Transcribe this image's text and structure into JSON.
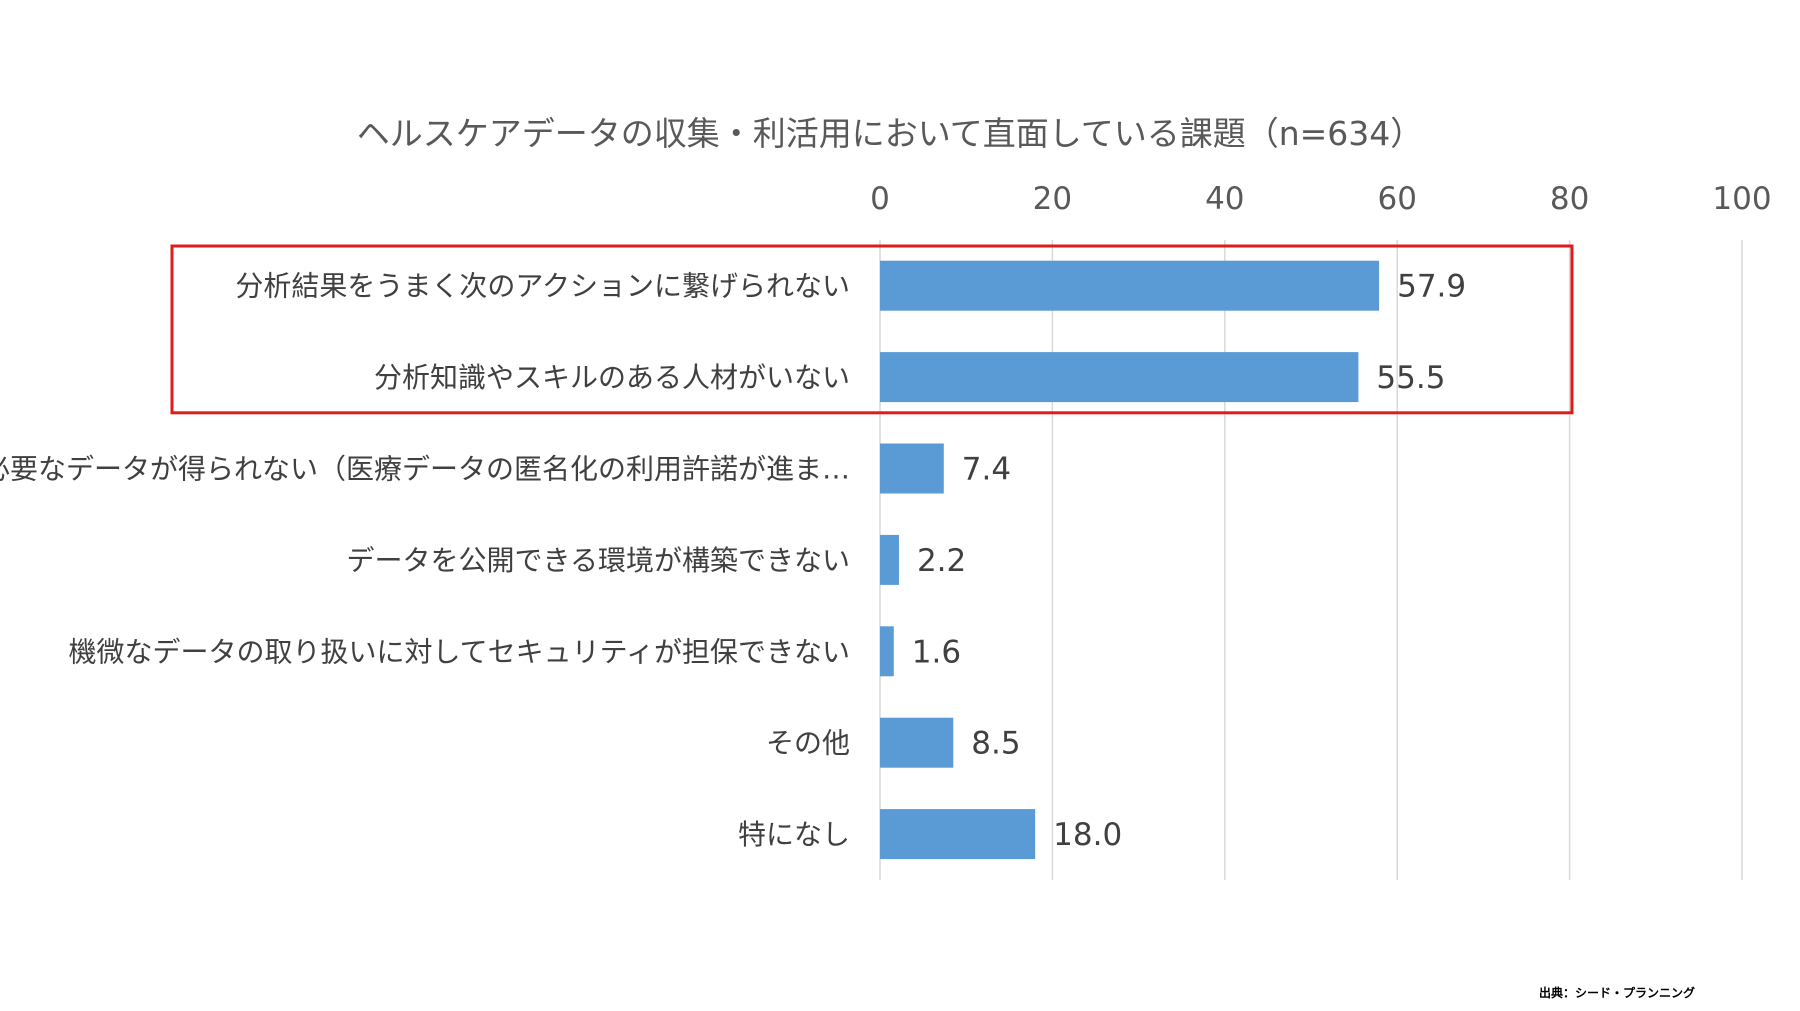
{
  "chart_data": {
    "type": "bar",
    "orientation": "horizontal",
    "title": "ヘルスケアデータの収集・利活用において直面している課題（n=634）",
    "categories": [
      "分析結果をうまく次のアクションに繋げられない",
      "分析知識やスキルのある人材がいない",
      "必要なデータが得られない（医療データの匿名化の利用許諾が進ま…",
      "データを公開できる環境が構築できない",
      "機微なデータの取り扱いに対してセキュリティが担保できない",
      "その他",
      "特になし"
    ],
    "values": [
      57.9,
      55.5,
      7.4,
      2.2,
      1.6,
      8.5,
      18.0
    ],
    "value_labels": [
      "57.9",
      "55.5",
      "7.4",
      "2.2",
      "1.6",
      "8.5",
      "18.0"
    ],
    "xlim": [
      0,
      100
    ],
    "xticks": [
      "0",
      "20",
      "40",
      "60",
      "80",
      "100"
    ],
    "xaxis_position": "top",
    "grid": true,
    "highlighted_categories": [
      0,
      1
    ],
    "bar_color": "#5b9bd5",
    "highlight_color": "#e01b1b"
  },
  "source": "出典：シード・プランニング"
}
